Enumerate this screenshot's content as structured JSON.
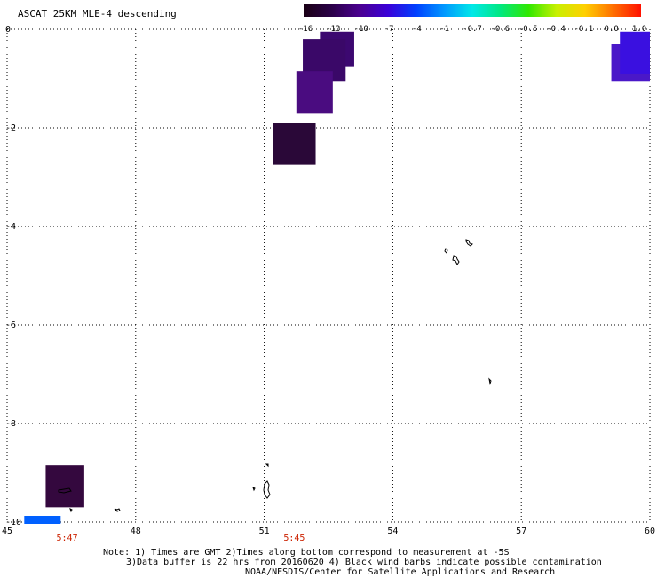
{
  "title": "ASCAT 25KM MLE-4 descending",
  "colorbar": {
    "labels": [
      "-16",
      "-13",
      "-10",
      "-7",
      "-4",
      "-1",
      "-0.7",
      "-0.6",
      "-0.5",
      "-0.4",
      "-0.1",
      "0.0",
      "1.0"
    ],
    "colors": [
      "#1a0014",
      "#2a0048",
      "#4a0090",
      "#3a00d8",
      "#0040ff",
      "#0098ff",
      "#00e8e8",
      "#00e880",
      "#30e800",
      "#c8f000",
      "#ffd000",
      "#ff7000",
      "#ff1000"
    ]
  },
  "map": {
    "lon_range": [
      45,
      60
    ],
    "lat_range": [
      -10,
      0
    ],
    "x_ticks": [
      "45",
      "48",
      "51",
      "54",
      "57",
      "60"
    ],
    "y_ticks": [
      "0",
      "-2",
      "-4",
      "-6",
      "-8",
      "-10"
    ],
    "time_labels": [
      {
        "text": "5:47",
        "lon": 46.4
      },
      {
        "text": "5:45",
        "lon": 51.7
      }
    ],
    "time_color": "#cc2200",
    "data_boxes": [
      {
        "lon1": 52.3,
        "lat1": -0.05,
        "lon2": 53.1,
        "lat2": -0.75,
        "color": "#3c0870"
      },
      {
        "lon1": 51.9,
        "lat1": -0.2,
        "lon2": 52.9,
        "lat2": -1.05,
        "color": "#3a0868"
      },
      {
        "lon1": 51.75,
        "lat1": -0.85,
        "lon2": 52.6,
        "lat2": -1.7,
        "color": "#4a0c80"
      },
      {
        "lon1": 51.2,
        "lat1": -1.9,
        "lon2": 52.2,
        "lat2": -2.75,
        "color": "#2a0838"
      },
      {
        "lon1": 45.9,
        "lat1": -8.85,
        "lon2": 46.8,
        "lat2": -9.7,
        "color": "#34083e"
      },
      {
        "lon1": 59.1,
        "lat1": -0.3,
        "lon2": 60.0,
        "lat2": -1.05,
        "color": "#4a18c8"
      },
      {
        "lon1": 59.3,
        "lat1": -0.05,
        "lon2": 60.0,
        "lat2": -0.9,
        "color": "#3a10e0"
      }
    ],
    "legend_bar": {
      "lon1": 45.4,
      "lat": -10.0,
      "lon2": 46.25,
      "color": "#0060ff"
    }
  },
  "notes": [
    "Note: 1) Times are GMT 2)Times along bottom correspond to measurement at -5S",
    "3)Data buffer is 22 hrs from 20160620 4) Black wind barbs indicate possible contamination",
    "NOAA/NESDIS/Center for Satellite Applications and Research"
  ]
}
